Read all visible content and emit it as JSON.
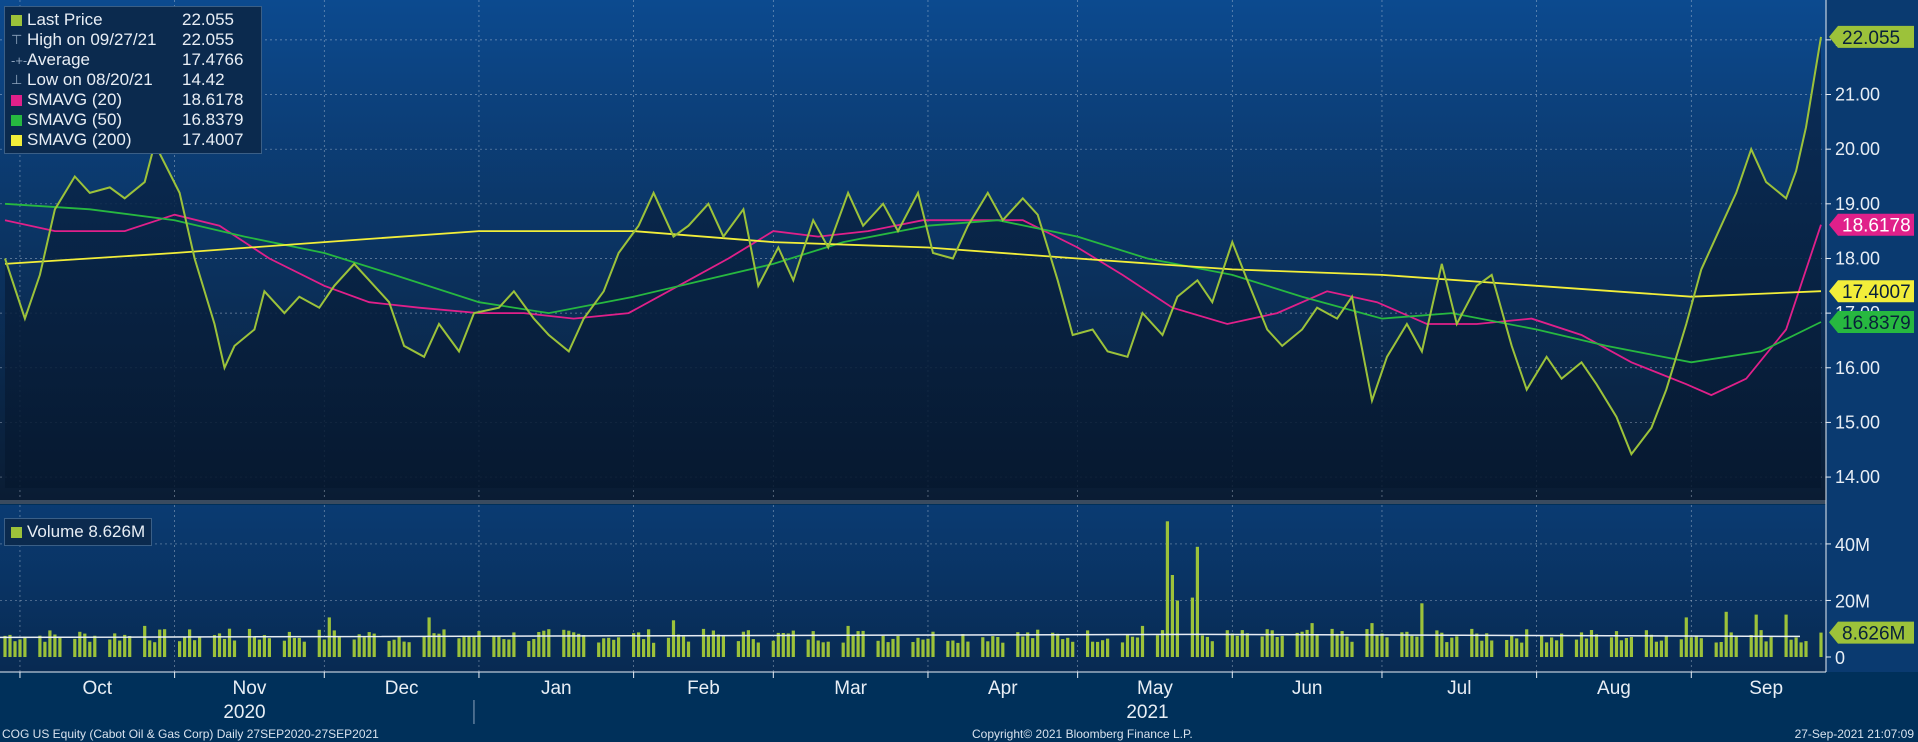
{
  "footer": {
    "left": "COG US Equity (Cabot Oil & Gas Corp)  Daily 27SEP2020-27SEP2021",
    "center": "Copyright© 2021 Bloomberg Finance L.P.",
    "right": "27-Sep-2021 21:07:09"
  },
  "legend_price": [
    {
      "label": "Last Price",
      "value": "22.055",
      "color": "#9cc23a",
      "glyph": "square"
    },
    {
      "label": "High on 09/27/21",
      "value": "22.055",
      "color": "#8ea4bd",
      "glyph": "high-marker-icon"
    },
    {
      "label": "Average",
      "value": "17.4766",
      "color": "#8ea4bd",
      "glyph": "average-marker-icon"
    },
    {
      "label": "Low on 08/20/21",
      "value": "14.42",
      "color": "#8ea4bd",
      "glyph": "low-marker-icon"
    },
    {
      "label": "SMAVG (20)",
      "value": "18.6178",
      "color": "#e0208a",
      "glyph": "square"
    },
    {
      "label": "SMAVG (50)",
      "value": "16.8379",
      "color": "#27b840",
      "glyph": "square"
    },
    {
      "label": "SMAVG (200)",
      "value": "17.4007",
      "color": "#f2ee3a",
      "glyph": "square"
    }
  ],
  "legend_volume": {
    "label": "Volume 8.626M",
    "color": "#9cc23a"
  },
  "chart_data": [
    {
      "type": "line",
      "panel": "price",
      "ylim": [
        13.8,
        22.4
      ],
      "yticks": [
        "14.00",
        "15.00",
        "16.00",
        "17.00",
        "18.00",
        "19.00",
        "20.00",
        "21.00",
        "22.00"
      ],
      "ytick_values": [
        14,
        15,
        16,
        17,
        18,
        19,
        20,
        21,
        22
      ],
      "x_tick_labels": [
        "Oct",
        "Nov",
        "Dec",
        "Jan",
        "Feb",
        "Mar",
        "Apr",
        "May",
        "Jun",
        "Jul",
        "Aug",
        "Sep"
      ],
      "x_tick_dates": [
        "2020-10-01",
        "2020-11-01",
        "2020-12-01",
        "2021-01-01",
        "2021-02-01",
        "2021-03-01",
        "2021-04-01",
        "2021-05-01",
        "2021-06-01",
        "2021-07-01",
        "2021-08-01",
        "2021-09-01"
      ],
      "year_labels": [
        {
          "text": "2020",
          "date": "2020-11-15"
        },
        {
          "text": "2021",
          "date": "2021-05-15"
        }
      ],
      "year_divider_date": "2020-12-31",
      "x_range": [
        "2020-09-27",
        "2021-09-28"
      ],
      "series": [
        {
          "name": "Last Price",
          "color": "#9cc23a",
          "end_label": "22.055",
          "points": [
            [
              "2020-09-28",
              18.0
            ],
            [
              "2020-10-02",
              16.9
            ],
            [
              "2020-10-05",
              17.7
            ],
            [
              "2020-10-08",
              18.9
            ],
            [
              "2020-10-12",
              19.5
            ],
            [
              "2020-10-15",
              19.2
            ],
            [
              "2020-10-19",
              19.3
            ],
            [
              "2020-10-22",
              19.1
            ],
            [
              "2020-10-26",
              19.4
            ],
            [
              "2020-10-28",
              20.1
            ],
            [
              "2020-11-02",
              19.2
            ],
            [
              "2020-11-05",
              18.0
            ],
            [
              "2020-11-09",
              16.8
            ],
            [
              "2020-11-11",
              16.0
            ],
            [
              "2020-11-13",
              16.4
            ],
            [
              "2020-11-17",
              16.7
            ],
            [
              "2020-11-19",
              17.4
            ],
            [
              "2020-11-23",
              17.0
            ],
            [
              "2020-11-26",
              17.3
            ],
            [
              "2020-11-30",
              17.1
            ],
            [
              "2020-12-03",
              17.5
            ],
            [
              "2020-12-07",
              17.9
            ],
            [
              "2020-12-10",
              17.6
            ],
            [
              "2020-12-14",
              17.2
            ],
            [
              "2020-12-17",
              16.4
            ],
            [
              "2020-12-21",
              16.2
            ],
            [
              "2020-12-24",
              16.8
            ],
            [
              "2020-12-28",
              16.3
            ],
            [
              "2020-12-31",
              17.0
            ],
            [
              "2021-01-05",
              17.1
            ],
            [
              "2021-01-08",
              17.4
            ],
            [
              "2021-01-12",
              16.9
            ],
            [
              "2021-01-15",
              16.6
            ],
            [
              "2021-01-19",
              16.3
            ],
            [
              "2021-01-22",
              16.9
            ],
            [
              "2021-01-26",
              17.4
            ],
            [
              "2021-01-29",
              18.1
            ],
            [
              "2021-02-02",
              18.6
            ],
            [
              "2021-02-05",
              19.2
            ],
            [
              "2021-02-09",
              18.4
            ],
            [
              "2021-02-12",
              18.6
            ],
            [
              "2021-02-16",
              19.0
            ],
            [
              "2021-02-19",
              18.4
            ],
            [
              "2021-02-23",
              18.9
            ],
            [
              "2021-02-26",
              17.5
            ],
            [
              "2021-03-02",
              18.2
            ],
            [
              "2021-03-05",
              17.6
            ],
            [
              "2021-03-09",
              18.7
            ],
            [
              "2021-03-12",
              18.2
            ],
            [
              "2021-03-16",
              19.2
            ],
            [
              "2021-03-19",
              18.6
            ],
            [
              "2021-03-23",
              19.0
            ],
            [
              "2021-03-26",
              18.5
            ],
            [
              "2021-03-30",
              19.2
            ],
            [
              "2021-04-02",
              18.1
            ],
            [
              "2021-04-06",
              18.0
            ],
            [
              "2021-04-09",
              18.6
            ],
            [
              "2021-04-13",
              19.2
            ],
            [
              "2021-04-16",
              18.7
            ],
            [
              "2021-04-20",
              19.1
            ],
            [
              "2021-04-23",
              18.8
            ],
            [
              "2021-04-27",
              17.6
            ],
            [
              "2021-04-30",
              16.6
            ],
            [
              "2021-05-04",
              16.7
            ],
            [
              "2021-05-07",
              16.3
            ],
            [
              "2021-05-11",
              16.2
            ],
            [
              "2021-05-14",
              17.0
            ],
            [
              "2021-05-18",
              16.6
            ],
            [
              "2021-05-21",
              17.3
            ],
            [
              "2021-05-25",
              17.6
            ],
            [
              "2021-05-28",
              17.2
            ],
            [
              "2021-06-01",
              18.3
            ],
            [
              "2021-06-04",
              17.6
            ],
            [
              "2021-06-08",
              16.7
            ],
            [
              "2021-06-11",
              16.4
            ],
            [
              "2021-06-15",
              16.7
            ],
            [
              "2021-06-18",
              17.1
            ],
            [
              "2021-06-22",
              16.9
            ],
            [
              "2021-06-25",
              17.3
            ],
            [
              "2021-06-29",
              15.4
            ],
            [
              "2021-07-02",
              16.2
            ],
            [
              "2021-07-06",
              16.8
            ],
            [
              "2021-07-09",
              16.3
            ],
            [
              "2021-07-13",
              17.9
            ],
            [
              "2021-07-16",
              16.8
            ],
            [
              "2021-07-20",
              17.5
            ],
            [
              "2021-07-23",
              17.7
            ],
            [
              "2021-07-27",
              16.4
            ],
            [
              "2021-07-30",
              15.6
            ],
            [
              "2021-08-03",
              16.2
            ],
            [
              "2021-08-06",
              15.8
            ],
            [
              "2021-08-10",
              16.1
            ],
            [
              "2021-08-13",
              15.7
            ],
            [
              "2021-08-17",
              15.1
            ],
            [
              "2021-08-20",
              14.42
            ],
            [
              "2021-08-24",
              14.9
            ],
            [
              "2021-08-27",
              15.6
            ],
            [
              "2021-08-31",
              16.8
            ],
            [
              "2021-09-03",
              17.8
            ],
            [
              "2021-09-07",
              18.6
            ],
            [
              "2021-09-10",
              19.2
            ],
            [
              "2021-09-13",
              20.0
            ],
            [
              "2021-09-16",
              19.4
            ],
            [
              "2021-09-20",
              19.1
            ],
            [
              "2021-09-22",
              19.6
            ],
            [
              "2021-09-24",
              20.4
            ],
            [
              "2021-09-27",
              22.055
            ]
          ]
        },
        {
          "name": "SMAVG (20)",
          "color": "#e0208a",
          "end_label": "18.6178",
          "points": [
            [
              "2020-09-28",
              18.7
            ],
            [
              "2020-10-08",
              18.5
            ],
            [
              "2020-10-22",
              18.5
            ],
            [
              "2020-11-01",
              18.8
            ],
            [
              "2020-11-10",
              18.6
            ],
            [
              "2020-11-20",
              18.0
            ],
            [
              "2020-12-01",
              17.5
            ],
            [
              "2020-12-10",
              17.2
            ],
            [
              "2020-12-20",
              17.1
            ],
            [
              "2021-01-01",
              17.0
            ],
            [
              "2021-01-10",
              17.0
            ],
            [
              "2021-01-20",
              16.9
            ],
            [
              "2021-01-31",
              17.0
            ],
            [
              "2021-02-10",
              17.5
            ],
            [
              "2021-02-20",
              18.0
            ],
            [
              "2021-03-01",
              18.5
            ],
            [
              "2021-03-10",
              18.4
            ],
            [
              "2021-03-20",
              18.5
            ],
            [
              "2021-03-31",
              18.7
            ],
            [
              "2021-04-10",
              18.7
            ],
            [
              "2021-04-20",
              18.7
            ],
            [
              "2021-05-01",
              18.2
            ],
            [
              "2021-05-10",
              17.7
            ],
            [
              "2021-05-20",
              17.1
            ],
            [
              "2021-05-31",
              16.8
            ],
            [
              "2021-06-10",
              17.0
            ],
            [
              "2021-06-20",
              17.4
            ],
            [
              "2021-06-30",
              17.2
            ],
            [
              "2021-07-10",
              16.8
            ],
            [
              "2021-07-20",
              16.8
            ],
            [
              "2021-07-31",
              16.9
            ],
            [
              "2021-08-10",
              16.6
            ],
            [
              "2021-08-20",
              16.1
            ],
            [
              "2021-08-31",
              15.7
            ],
            [
              "2021-09-05",
              15.5
            ],
            [
              "2021-09-12",
              15.8
            ],
            [
              "2021-09-20",
              16.7
            ],
            [
              "2021-09-27",
              18.6178
            ]
          ]
        },
        {
          "name": "SMAVG (50)",
          "color": "#27b840",
          "end_label": "16.8379",
          "points": [
            [
              "2020-09-28",
              19.0
            ],
            [
              "2020-10-15",
              18.9
            ],
            [
              "2020-11-01",
              18.7
            ],
            [
              "2020-11-15",
              18.4
            ],
            [
              "2020-12-01",
              18.1
            ],
            [
              "2020-12-15",
              17.7
            ],
            [
              "2021-01-01",
              17.2
            ],
            [
              "2021-01-15",
              17.0
            ],
            [
              "2021-02-01",
              17.3
            ],
            [
              "2021-02-15",
              17.6
            ],
            [
              "2021-03-01",
              17.9
            ],
            [
              "2021-03-15",
              18.3
            ],
            [
              "2021-04-01",
              18.6
            ],
            [
              "2021-04-15",
              18.7
            ],
            [
              "2021-05-01",
              18.4
            ],
            [
              "2021-05-15",
              18.0
            ],
            [
              "2021-06-01",
              17.7
            ],
            [
              "2021-06-15",
              17.3
            ],
            [
              "2021-07-01",
              16.9
            ],
            [
              "2021-07-15",
              17.0
            ],
            [
              "2021-08-01",
              16.7
            ],
            [
              "2021-08-15",
              16.4
            ],
            [
              "2021-09-01",
              16.1
            ],
            [
              "2021-09-15",
              16.3
            ],
            [
              "2021-09-27",
              16.8379
            ]
          ]
        },
        {
          "name": "SMAVG (200)",
          "color": "#f2ee3a",
          "end_label": "17.4007",
          "points": [
            [
              "2020-09-28",
              17.9
            ],
            [
              "2020-11-01",
              18.1
            ],
            [
              "2020-12-01",
              18.3
            ],
            [
              "2021-01-01",
              18.5
            ],
            [
              "2021-02-01",
              18.5
            ],
            [
              "2021-03-01",
              18.3
            ],
            [
              "2021-04-01",
              18.2
            ],
            [
              "2021-05-01",
              18.0
            ],
            [
              "2021-06-01",
              17.8
            ],
            [
              "2021-07-01",
              17.7
            ],
            [
              "2021-08-01",
              17.5
            ],
            [
              "2021-09-01",
              17.3
            ],
            [
              "2021-09-27",
              17.4007
            ]
          ]
        }
      ]
    },
    {
      "type": "bar",
      "panel": "volume",
      "ylim": [
        0,
        52000000
      ],
      "yticks": [
        "0",
        "20M",
        "40M"
      ],
      "ytick_values": [
        0,
        20000000,
        40000000
      ],
      "series": [
        {
          "name": "Volume",
          "color": "#9cc23a",
          "end_label": "8.626M",
          "baseline": 8000000,
          "typical_range_millions": [
            5,
            10
          ],
          "notable_bars": [
            [
              "2020-10-26",
              11
            ],
            [
              "2020-11-12",
              10
            ],
            [
              "2020-12-02",
              14
            ],
            [
              "2020-12-22",
              14
            ],
            [
              "2021-02-09",
              13
            ],
            [
              "2021-03-16",
              11
            ],
            [
              "2021-05-14",
              11
            ],
            [
              "2021-05-19",
              48
            ],
            [
              "2021-05-20",
              29
            ],
            [
              "2021-05-21",
              20
            ],
            [
              "2021-05-24",
              21
            ],
            [
              "2021-05-25",
              39
            ],
            [
              "2021-06-17",
              12
            ],
            [
              "2021-06-29",
              12
            ],
            [
              "2021-07-09",
              19
            ],
            [
              "2021-08-31",
              14
            ],
            [
              "2021-09-08",
              16
            ],
            [
              "2021-09-14",
              15
            ],
            [
              "2021-09-20",
              15
            ],
            [
              "2021-09-27",
              8.626
            ]
          ]
        }
      ]
    }
  ]
}
